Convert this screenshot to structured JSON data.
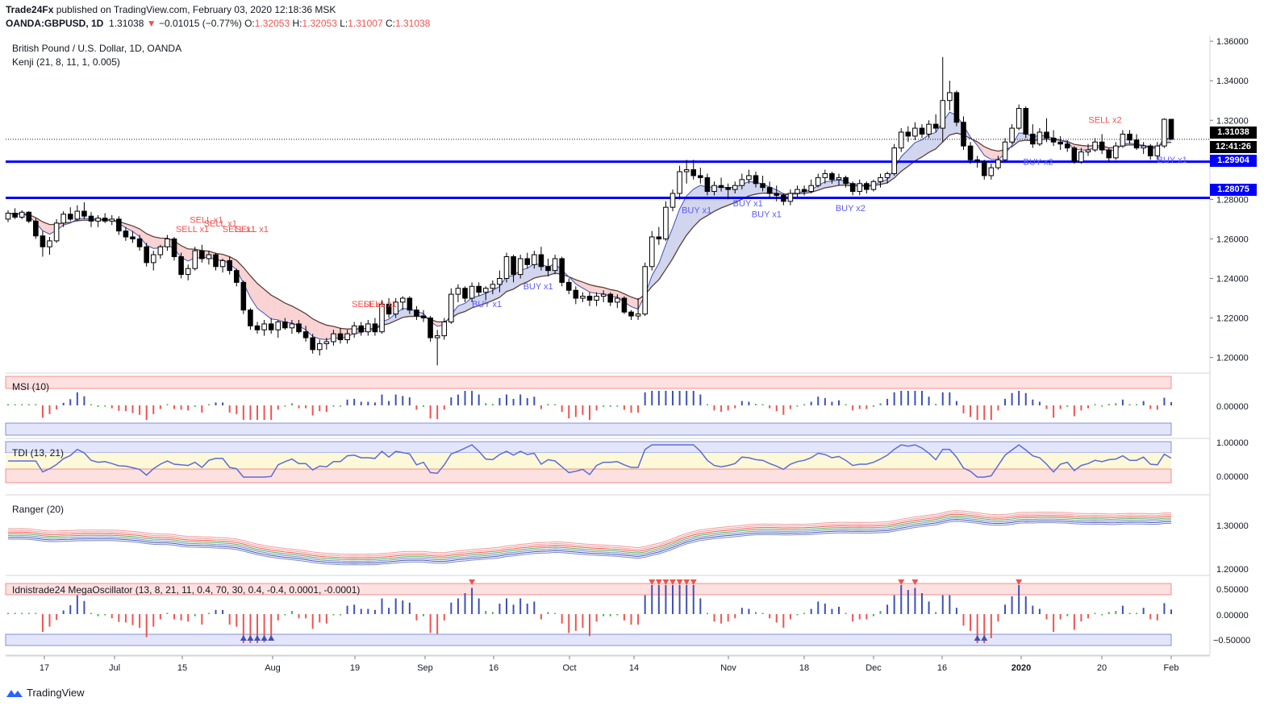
{
  "header": {
    "publisher": "Trade24Fx",
    "published_text": " published on TradingView.com, February 03, 2020 12:18:36 MSK",
    "symbol": "OANDA:GBPUSD, 1D",
    "last": "1.31038",
    "change": "−0.01015 (−0.77%)",
    "o_label": "O:",
    "o": "1.32053",
    "h_label": "H:",
    "h": "1.32053",
    "l_label": "L:",
    "l": "1.31007",
    "c_label": "C:",
    "c": "1.31038"
  },
  "legend": {
    "title": "British Pound / U.S. Dollar, 1D, OANDA",
    "kenji": "Kenji (21, 8, 11, 1, 0.005)"
  },
  "panes": {
    "msi": "MSI (10)",
    "tdi": "TDI (13, 21)",
    "ranger": "Ranger (20)",
    "mega": "Idnistrade24 MegaOscillator (13, 8, 21, 11, 0.4, 70, 30, 0.4, -0.4, 0.0001, -0.0001)"
  },
  "price_tags": {
    "last": "1.31038",
    "countdown": "12:41:26",
    "level1": "1.29904",
    "level2": "1.28075"
  },
  "colors": {
    "bull": "#ffffff",
    "bear": "#000000",
    "level": "#0000ff",
    "buy": "#5b5bff",
    "sell": "#ef5350",
    "green": "#4caf50",
    "red": "#ef5350",
    "blue": "#3f51b5"
  },
  "footer": {
    "brand": "TradingView"
  },
  "chart_data": {
    "type": "candlestick",
    "symbol": "GBPUSD",
    "timeframe": "1D",
    "x_ticks": [
      "17",
      "Jul",
      "15",
      "Aug",
      "19",
      "Sep",
      "16",
      "Oct",
      "14",
      "Nov",
      "18",
      "Dec",
      "16",
      "2020",
      "20",
      "Feb"
    ],
    "y_ticks": [
      "1.36000",
      "1.34000",
      "1.32000",
      "1.30000",
      "1.28000",
      "1.26000",
      "1.24000",
      "1.22000",
      "1.20000"
    ],
    "ylim": [
      1.1925,
      1.3625
    ],
    "horizontal_levels": [
      1.29904,
      1.28075
    ],
    "last_price": 1.31038,
    "annotations": [
      {
        "text": "SELL x1",
        "x": 0.158,
        "y": 1.2682
      },
      {
        "text": "SELL x1",
        "x": 0.17,
        "y": 1.2662
      },
      {
        "text": "SELL x1",
        "x": 0.146,
        "y": 1.2635
      },
      {
        "text": "SELL x1",
        "x": 0.186,
        "y": 1.2635
      },
      {
        "text": "SELL x1",
        "x": 0.197,
        "y": 1.2635
      },
      {
        "text": "SELL x1",
        "x": 0.297,
        "y": 1.2255
      },
      {
        "text": "SELL x1",
        "x": 0.307,
        "y": 1.2255
      },
      {
        "text": "BUY x1",
        "x": 0.4,
        "y": 1.2255
      },
      {
        "text": "BUY x1",
        "x": 0.444,
        "y": 1.2345
      },
      {
        "text": "BUY x1",
        "x": 0.58,
        "y": 1.273
      },
      {
        "text": "BUY x1",
        "x": 0.624,
        "y": 1.2765
      },
      {
        "text": "BUY x1",
        "x": 0.64,
        "y": 1.271
      },
      {
        "text": "BUY x2",
        "x": 0.712,
        "y": 1.274
      },
      {
        "text": "BUY x2",
        "x": 0.873,
        "y": 1.2975
      },
      {
        "text": "SELL x2",
        "x": 0.929,
        "y": 1.3186
      },
      {
        "text": "BUY x1",
        "x": 0.988,
        "y": 1.2985
      }
    ],
    "candles": [
      [
        1.27,
        1.2745,
        1.2685,
        1.273
      ],
      [
        1.273,
        1.2755,
        1.27,
        1.271
      ],
      [
        1.271,
        1.2745,
        1.27,
        1.2735
      ],
      [
        1.2735,
        1.274,
        1.268,
        1.269
      ],
      [
        1.269,
        1.2705,
        1.26,
        1.2615
      ],
      [
        1.2615,
        1.264,
        1.251,
        1.256
      ],
      [
        1.256,
        1.261,
        1.252,
        1.259
      ],
      [
        1.259,
        1.27,
        1.258,
        1.268
      ],
      [
        1.268,
        1.274,
        1.266,
        1.2725
      ],
      [
        1.2725,
        1.276,
        1.269,
        1.27
      ],
      [
        1.27,
        1.277,
        1.269,
        1.274
      ],
      [
        1.274,
        1.2785,
        1.27,
        1.2715
      ],
      [
        1.2715,
        1.2735,
        1.266,
        1.269
      ],
      [
        1.269,
        1.272,
        1.266,
        1.2705
      ],
      [
        1.2705,
        1.273,
        1.268,
        1.269
      ],
      [
        1.269,
        1.272,
        1.267,
        1.27
      ],
      [
        1.27,
        1.2715,
        1.262,
        1.264
      ],
      [
        1.264,
        1.266,
        1.259,
        1.261
      ],
      [
        1.261,
        1.264,
        1.258,
        1.26
      ],
      [
        1.26,
        1.262,
        1.254,
        1.256
      ],
      [
        1.256,
        1.258,
        1.246,
        1.248
      ],
      [
        1.248,
        1.254,
        1.244,
        1.252
      ],
      [
        1.252,
        1.257,
        1.25,
        1.256
      ],
      [
        1.256,
        1.262,
        1.254,
        1.26
      ],
      [
        1.26,
        1.261,
        1.249,
        1.251
      ],
      [
        1.251,
        1.253,
        1.24,
        1.242
      ],
      [
        1.242,
        1.247,
        1.239,
        1.245
      ],
      [
        1.245,
        1.256,
        1.244,
        1.254
      ],
      [
        1.254,
        1.257,
        1.248,
        1.25
      ],
      [
        1.25,
        1.254,
        1.247,
        1.252
      ],
      [
        1.252,
        1.253,
        1.244,
        1.246
      ],
      [
        1.246,
        1.25,
        1.243,
        1.249
      ],
      [
        1.249,
        1.251,
        1.242,
        1.244
      ],
      [
        1.244,
        1.245,
        1.236,
        1.238
      ],
      [
        1.238,
        1.239,
        1.222,
        1.224
      ],
      [
        1.224,
        1.225,
        1.214,
        1.216
      ],
      [
        1.216,
        1.218,
        1.212,
        1.214
      ],
      [
        1.214,
        1.219,
        1.211,
        1.217
      ],
      [
        1.217,
        1.22,
        1.212,
        1.214
      ],
      [
        1.214,
        1.219,
        1.21,
        1.218
      ],
      [
        1.218,
        1.22,
        1.214,
        1.215
      ],
      [
        1.215,
        1.219,
        1.212,
        1.217
      ],
      [
        1.217,
        1.219,
        1.212,
        1.213
      ],
      [
        1.213,
        1.216,
        1.208,
        1.21
      ],
      [
        1.21,
        1.212,
        1.202,
        1.204
      ],
      [
        1.204,
        1.209,
        1.201,
        1.207
      ],
      [
        1.207,
        1.21,
        1.204,
        1.208
      ],
      [
        1.208,
        1.214,
        1.206,
        1.212
      ],
      [
        1.212,
        1.215,
        1.207,
        1.209
      ],
      [
        1.209,
        1.214,
        1.207,
        1.212
      ],
      [
        1.212,
        1.218,
        1.21,
        1.216
      ],
      [
        1.216,
        1.218,
        1.211,
        1.213
      ],
      [
        1.213,
        1.219,
        1.211,
        1.217
      ],
      [
        1.217,
        1.22,
        1.211,
        1.213
      ],
      [
        1.213,
        1.229,
        1.212,
        1.227
      ],
      [
        1.227,
        1.23,
        1.22,
        1.222
      ],
      [
        1.222,
        1.23,
        1.22,
        1.228
      ],
      [
        1.228,
        1.231,
        1.224,
        1.23
      ],
      [
        1.23,
        1.231,
        1.222,
        1.224
      ],
      [
        1.224,
        1.226,
        1.219,
        1.221
      ],
      [
        1.221,
        1.224,
        1.218,
        1.22
      ],
      [
        1.22,
        1.221,
        1.208,
        1.21
      ],
      [
        1.21,
        1.214,
        1.196,
        1.211
      ],
      [
        1.211,
        1.22,
        1.209,
        1.218
      ],
      [
        1.218,
        1.235,
        1.217,
        1.232
      ],
      [
        1.232,
        1.237,
        1.228,
        1.235
      ],
      [
        1.235,
        1.236,
        1.228,
        1.23
      ],
      [
        1.23,
        1.238,
        1.228,
        1.236
      ],
      [
        1.236,
        1.238,
        1.231,
        1.233
      ],
      [
        1.233,
        1.236,
        1.229,
        1.235
      ],
      [
        1.235,
        1.239,
        1.232,
        1.237
      ],
      [
        1.237,
        1.244,
        1.233,
        1.24
      ],
      [
        1.24,
        1.253,
        1.238,
        1.251
      ],
      [
        1.251,
        1.252,
        1.238,
        1.242
      ],
      [
        1.242,
        1.252,
        1.24,
        1.25
      ],
      [
        1.25,
        1.253,
        1.245,
        1.247
      ],
      [
        1.247,
        1.254,
        1.245,
        1.252
      ],
      [
        1.252,
        1.256,
        1.244,
        1.246
      ],
      [
        1.246,
        1.25,
        1.241,
        1.244
      ],
      [
        1.244,
        1.252,
        1.242,
        1.25
      ],
      [
        1.25,
        1.251,
        1.236,
        1.238
      ],
      [
        1.238,
        1.24,
        1.232,
        1.234
      ],
      [
        1.234,
        1.236,
        1.227,
        1.23
      ],
      [
        1.23,
        1.233,
        1.228,
        1.231
      ],
      [
        1.231,
        1.233,
        1.226,
        1.229
      ],
      [
        1.229,
        1.233,
        1.226,
        1.231
      ],
      [
        1.231,
        1.234,
        1.228,
        1.232
      ],
      [
        1.232,
        1.233,
        1.226,
        1.228
      ],
      [
        1.228,
        1.232,
        1.225,
        1.23
      ],
      [
        1.23,
        1.231,
        1.222,
        1.223
      ],
      [
        1.223,
        1.224,
        1.219,
        1.221
      ],
      [
        1.221,
        1.23,
        1.219,
        1.222
      ],
      [
        1.222,
        1.248,
        1.221,
        1.246
      ],
      [
        1.246,
        1.264,
        1.244,
        1.261
      ],
      [
        1.261,
        1.266,
        1.257,
        1.26
      ],
      [
        1.26,
        1.279,
        1.259,
        1.276
      ],
      [
        1.276,
        1.285,
        1.274,
        1.283
      ],
      [
        1.283,
        1.297,
        1.28,
        1.294
      ],
      [
        1.294,
        1.3,
        1.288,
        1.295
      ],
      [
        1.295,
        1.3,
        1.29,
        1.292
      ],
      [
        1.292,
        1.296,
        1.288,
        1.291
      ],
      [
        1.291,
        1.293,
        1.282,
        1.284
      ],
      [
        1.284,
        1.289,
        1.282,
        1.287
      ],
      [
        1.287,
        1.291,
        1.284,
        1.286
      ],
      [
        1.286,
        1.288,
        1.28,
        1.285
      ],
      [
        1.285,
        1.289,
        1.283,
        1.287
      ],
      [
        1.287,
        1.293,
        1.285,
        1.29
      ],
      [
        1.29,
        1.295,
        1.288,
        1.292
      ],
      [
        1.292,
        1.294,
        1.286,
        1.288
      ],
      [
        1.288,
        1.292,
        1.284,
        1.286
      ],
      [
        1.286,
        1.289,
        1.281,
        1.283
      ],
      [
        1.283,
        1.287,
        1.279,
        1.282
      ],
      [
        1.282,
        1.283,
        1.277,
        1.279
      ],
      [
        1.279,
        1.285,
        1.277,
        1.283
      ],
      [
        1.283,
        1.287,
        1.281,
        1.285
      ],
      [
        1.285,
        1.287,
        1.282,
        1.284
      ],
      [
        1.284,
        1.29,
        1.283,
        1.287
      ],
      [
        1.287,
        1.293,
        1.286,
        1.291
      ],
      [
        1.291,
        1.295,
        1.288,
        1.293
      ],
      [
        1.293,
        1.294,
        1.288,
        1.29
      ],
      [
        1.29,
        1.293,
        1.287,
        1.291
      ],
      [
        1.291,
        1.292,
        1.286,
        1.288
      ],
      [
        1.288,
        1.289,
        1.282,
        1.284
      ],
      [
        1.284,
        1.29,
        1.282,
        1.288
      ],
      [
        1.288,
        1.289,
        1.283,
        1.285
      ],
      [
        1.285,
        1.29,
        1.284,
        1.289
      ],
      [
        1.289,
        1.293,
        1.286,
        1.291
      ],
      [
        1.291,
        1.294,
        1.288,
        1.293
      ],
      [
        1.293,
        1.308,
        1.292,
        1.306
      ],
      [
        1.306,
        1.316,
        1.304,
        1.314
      ],
      [
        1.314,
        1.317,
        1.309,
        1.312
      ],
      [
        1.312,
        1.319,
        1.31,
        1.316
      ],
      [
        1.316,
        1.318,
        1.311,
        1.313
      ],
      [
        1.313,
        1.32,
        1.311,
        1.318
      ],
      [
        1.318,
        1.323,
        1.314,
        1.316
      ],
      [
        1.316,
        1.352,
        1.309,
        1.33
      ],
      [
        1.33,
        1.34,
        1.325,
        1.334
      ],
      [
        1.334,
        1.335,
        1.317,
        1.319
      ],
      [
        1.319,
        1.322,
        1.305,
        1.307
      ],
      [
        1.307,
        1.309,
        1.298,
        1.3
      ],
      [
        1.3,
        1.302,
        1.296,
        1.299
      ],
      [
        1.299,
        1.3,
        1.29,
        1.292
      ],
      [
        1.292,
        1.298,
        1.29,
        1.296
      ],
      [
        1.296,
        1.302,
        1.295,
        1.3
      ],
      [
        1.3,
        1.311,
        1.299,
        1.309
      ],
      [
        1.309,
        1.318,
        1.308,
        1.316
      ],
      [
        1.316,
        1.328,
        1.315,
        1.326
      ],
      [
        1.326,
        1.327,
        1.311,
        1.313
      ],
      [
        1.313,
        1.318,
        1.306,
        1.308
      ],
      [
        1.308,
        1.316,
        1.307,
        1.314
      ],
      [
        1.314,
        1.321,
        1.309,
        1.311
      ],
      [
        1.311,
        1.315,
        1.307,
        1.309
      ],
      [
        1.309,
        1.312,
        1.305,
        1.308
      ],
      [
        1.308,
        1.31,
        1.304,
        1.306
      ],
      [
        1.306,
        1.307,
        1.298,
        1.299
      ],
      [
        1.299,
        1.306,
        1.298,
        1.304
      ],
      [
        1.304,
        1.308,
        1.302,
        1.305
      ],
      [
        1.305,
        1.311,
        1.304,
        1.309
      ],
      [
        1.309,
        1.313,
        1.303,
        1.305
      ],
      [
        1.305,
        1.306,
        1.299,
        1.301
      ],
      [
        1.301,
        1.309,
        1.3,
        1.307
      ],
      [
        1.307,
        1.315,
        1.306,
        1.313
      ],
      [
        1.313,
        1.315,
        1.308,
        1.31
      ],
      [
        1.31,
        1.313,
        1.305,
        1.306
      ],
      [
        1.306,
        1.309,
        1.303,
        1.307
      ],
      [
        1.307,
        1.308,
        1.3,
        1.302
      ],
      [
        1.302,
        1.309,
        1.3,
        1.307
      ],
      [
        1.307,
        1.321,
        1.306,
        1.3205
      ],
      [
        1.3205,
        1.3205,
        1.3101,
        1.3104
      ]
    ]
  }
}
